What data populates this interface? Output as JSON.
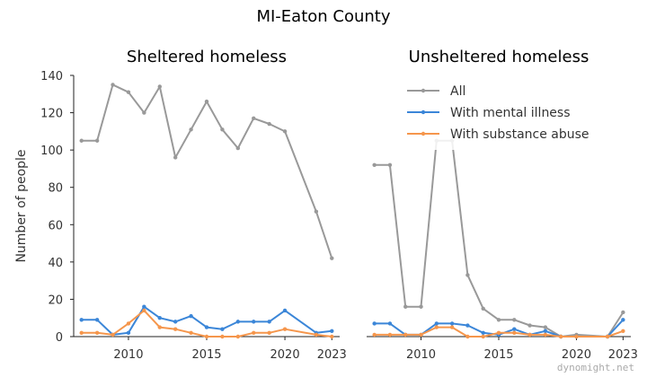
{
  "figure": {
    "title": "MI-Eaton County",
    "watermark": "dynomight.net"
  },
  "chart_data": [
    {
      "type": "line",
      "title": "Sheltered homeless",
      "xlabel": "",
      "ylabel": "Number of people",
      "xlim": [
        2006.5,
        2023.5
      ],
      "ylim": [
        0,
        140
      ],
      "x_ticks": [
        "2010",
        "2015",
        "2020",
        "2023"
      ],
      "y_ticks": [
        "0",
        "20",
        "40",
        "60",
        "80",
        "100",
        "120",
        "140"
      ],
      "series": [
        {
          "name": "All",
          "color": "#999999",
          "x": [
            2007,
            2008,
            2009,
            2010,
            2011,
            2012,
            2013,
            2014,
            2015,
            2016,
            2017,
            2018,
            2019,
            2020,
            2022,
            2023
          ],
          "y": [
            105,
            105,
            135,
            131,
            120,
            134,
            96,
            111,
            126,
            111,
            101,
            117,
            114,
            110,
            67,
            42
          ]
        },
        {
          "name": "With mental illness",
          "color": "#3b86d8",
          "x": [
            2007,
            2008,
            2009,
            2010,
            2011,
            2012,
            2013,
            2014,
            2015,
            2016,
            2017,
            2018,
            2019,
            2020,
            2022,
            2023
          ],
          "y": [
            9,
            9,
            1,
            2,
            16,
            10,
            8,
            11,
            5,
            4,
            8,
            8,
            8,
            14,
            2,
            3
          ]
        },
        {
          "name": "With substance abuse",
          "color": "#f5964c",
          "x": [
            2007,
            2008,
            2009,
            2010,
            2011,
            2012,
            2013,
            2014,
            2015,
            2016,
            2017,
            2018,
            2019,
            2020,
            2022,
            2023
          ],
          "y": [
            2,
            2,
            1,
            7,
            14,
            5,
            4,
            2,
            0,
            0,
            0,
            2,
            2,
            4,
            1,
            0
          ]
        }
      ]
    },
    {
      "type": "line",
      "title": "Unsheltered homeless",
      "xlabel": "",
      "ylabel": "",
      "xlim": [
        2006.5,
        2023.5
      ],
      "ylim": [
        0,
        140
      ],
      "x_ticks": [
        "2010",
        "2015",
        "2020",
        "2023"
      ],
      "legend": {
        "position": "top-right",
        "entries": [
          "All",
          "With mental illness",
          "With substance abuse"
        ]
      },
      "series": [
        {
          "name": "All",
          "color": "#999999",
          "x": [
            2007,
            2008,
            2009,
            2010,
            2011,
            2012,
            2013,
            2014,
            2015,
            2016,
            2017,
            2018,
            2019,
            2020,
            2022,
            2023
          ],
          "y": [
            92,
            92,
            16,
            16,
            105,
            105,
            33,
            15,
            9,
            9,
            6,
            5,
            0,
            1,
            0,
            13
          ]
        },
        {
          "name": "With mental illness",
          "color": "#3b86d8",
          "x": [
            2007,
            2008,
            2009,
            2010,
            2011,
            2012,
            2013,
            2014,
            2015,
            2016,
            2017,
            2018,
            2019,
            2020,
            2022,
            2023
          ],
          "y": [
            7,
            7,
            1,
            1,
            7,
            7,
            6,
            2,
            1,
            4,
            1,
            3,
            0,
            0,
            0,
            9
          ]
        },
        {
          "name": "With substance abuse",
          "color": "#f5964c",
          "x": [
            2007,
            2008,
            2009,
            2010,
            2011,
            2012,
            2013,
            2014,
            2015,
            2016,
            2017,
            2018,
            2019,
            2020,
            2022,
            2023
          ],
          "y": [
            1,
            1,
            1,
            1,
            5,
            5,
            0,
            0,
            2,
            2,
            1,
            1,
            0,
            0,
            0,
            3
          ]
        }
      ]
    }
  ]
}
